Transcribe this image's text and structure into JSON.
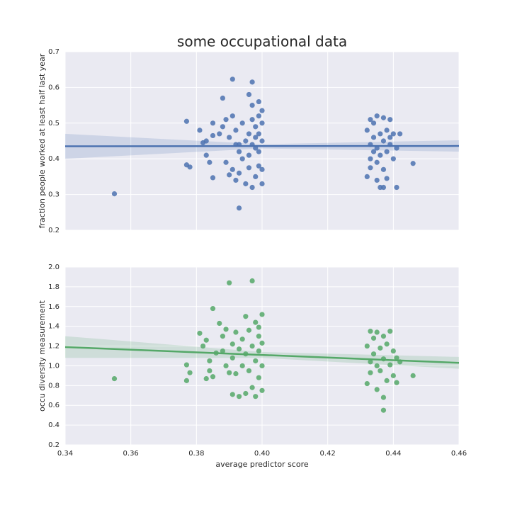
{
  "chart_data": [
    {
      "type": "scatter",
      "title": "some occupational data",
      "ylabel": "fraction people worked at least half last year",
      "color": "#4c72b0",
      "xlim": [
        0.34,
        0.46
      ],
      "xticks": [
        0.34,
        0.36,
        0.38,
        {
          "value": 0.4,
          "label": "0.40"
        },
        0.42,
        0.44,
        0.46
      ],
      "show_xtick_labels": false,
      "ylim": [
        0.2,
        0.7
      ],
      "yticks": [
        0.2,
        0.3,
        0.4,
        0.5,
        0.6,
        0.7
      ],
      "grid": true,
      "x": [
        0.355,
        0.377,
        0.377,
        0.378,
        0.381,
        0.382,
        0.383,
        0.383,
        0.384,
        0.385,
        0.385,
        0.385,
        0.387,
        0.388,
        0.388,
        0.389,
        0.389,
        0.39,
        0.39,
        0.391,
        0.391,
        0.391,
        0.392,
        0.392,
        0.392,
        0.393,
        0.393,
        0.393,
        0.393,
        0.394,
        0.394,
        0.395,
        0.395,
        0.396,
        0.396,
        0.396,
        0.396,
        0.397,
        0.397,
        0.397,
        0.397,
        0.397,
        0.398,
        0.398,
        0.398,
        0.398,
        0.399,
        0.399,
        0.399,
        0.399,
        0.4,
        0.4,
        0.4,
        0.4,
        0.4,
        0.399,
        0.432,
        0.432,
        0.433,
        0.433,
        0.433,
        0.433,
        0.434,
        0.434,
        0.434,
        0.435,
        0.435,
        0.435,
        0.435,
        0.436,
        0.436,
        0.436,
        0.437,
        0.437,
        0.437,
        0.437,
        0.438,
        0.438,
        0.438,
        0.439,
        0.439,
        0.439,
        0.44,
        0.44,
        0.441,
        0.441,
        0.442,
        0.446
      ],
      "values": [
        0.302,
        0.505,
        0.383,
        0.377,
        0.48,
        0.445,
        0.45,
        0.41,
        0.39,
        0.465,
        0.5,
        0.347,
        0.47,
        0.57,
        0.49,
        0.39,
        0.51,
        0.355,
        0.46,
        0.623,
        0.52,
        0.37,
        0.44,
        0.48,
        0.34,
        0.44,
        0.42,
        0.36,
        0.262,
        0.5,
        0.4,
        0.45,
        0.33,
        0.58,
        0.47,
        0.41,
        0.375,
        0.615,
        0.51,
        0.55,
        0.44,
        0.32,
        0.49,
        0.46,
        0.35,
        0.43,
        0.56,
        0.52,
        0.38,
        0.47,
        0.5,
        0.45,
        0.535,
        0.33,
        0.37,
        0.42,
        0.35,
        0.48,
        0.51,
        0.44,
        0.4,
        0.375,
        0.5,
        0.46,
        0.42,
        0.34,
        0.52,
        0.43,
        0.39,
        0.47,
        0.41,
        0.32,
        0.515,
        0.45,
        0.37,
        0.32,
        0.48,
        0.42,
        0.345,
        0.51,
        0.46,
        0.44,
        0.4,
        0.47,
        0.32,
        0.43,
        0.47,
        0.387
      ],
      "fit": {
        "x": [
          0.34,
          0.46
        ],
        "values": [
          0.435,
          0.436
        ]
      },
      "band": {
        "x": [
          0.34,
          0.4,
          0.46
        ],
        "upper": [
          0.47,
          0.441,
          0.452
        ],
        "lower": [
          0.4,
          0.429,
          0.42
        ]
      }
    },
    {
      "type": "scatter",
      "xlabel": "average predictor score",
      "ylabel": "occu diversity measurement",
      "color": "#55a868",
      "xlim": [
        0.34,
        0.46
      ],
      "xticks": [
        0.34,
        0.36,
        0.38,
        {
          "value": 0.4,
          "label": "0.40"
        },
        0.42,
        0.44,
        0.46
      ],
      "show_xtick_labels": true,
      "ylim": [
        0.2,
        2.0
      ],
      "yticks": [
        0.2,
        0.4,
        0.6,
        0.8,
        {
          "value": 1,
          "label": "1.0"
        },
        1.2,
        1.4,
        1.6,
        1.8,
        {
          "value": 2,
          "label": "2.0"
        }
      ],
      "grid": true,
      "x": [
        0.355,
        0.377,
        0.377,
        0.378,
        0.381,
        0.382,
        0.383,
        0.383,
        0.384,
        0.384,
        0.385,
        0.385,
        0.386,
        0.387,
        0.388,
        0.388,
        0.389,
        0.389,
        0.39,
        0.39,
        0.391,
        0.391,
        0.391,
        0.392,
        0.392,
        0.393,
        0.393,
        0.394,
        0.394,
        0.395,
        0.395,
        0.395,
        0.396,
        0.396,
        0.397,
        0.397,
        0.397,
        0.398,
        0.398,
        0.398,
        0.399,
        0.399,
        0.399,
        0.4,
        0.4,
        0.4,
        0.4,
        0.399,
        0.432,
        0.432,
        0.433,
        0.433,
        0.433,
        0.434,
        0.434,
        0.435,
        0.435,
        0.435,
        0.436,
        0.436,
        0.437,
        0.437,
        0.437,
        0.437,
        0.438,
        0.438,
        0.439,
        0.439,
        0.44,
        0.44,
        0.441,
        0.441,
        0.442,
        0.446
      ],
      "values": [
        0.87,
        1.01,
        0.85,
        0.93,
        1.33,
        1.2,
        1.26,
        0.87,
        1.05,
        0.95,
        1.58,
        0.89,
        1.13,
        1.43,
        1.3,
        1.15,
        1.37,
        1.0,
        1.84,
        0.93,
        0.71,
        1.22,
        1.08,
        0.92,
        1.34,
        1.17,
        0.69,
        1.0,
        1.27,
        1.5,
        0.72,
        1.12,
        1.36,
        0.95,
        1.86,
        1.2,
        0.78,
        1.44,
        1.05,
        0.69,
        1.3,
        1.15,
        0.88,
        1.52,
        1.23,
        1.0,
        0.75,
        1.39,
        1.2,
        0.82,
        1.35,
        1.04,
        0.93,
        1.28,
        1.12,
        0.76,
        1.0,
        1.34,
        1.18,
        0.95,
        0.55,
        1.3,
        1.07,
        0.68,
        0.85,
        1.22,
        1.01,
        1.35,
        1.15,
        0.9,
        0.83,
        1.08,
        1.04,
        0.9
      ],
      "fit": {
        "x": [
          0.34,
          0.46
        ],
        "values": [
          1.19,
          1.03
        ]
      },
      "band": {
        "x": [
          0.34,
          0.4,
          0.46
        ],
        "upper": [
          1.3,
          1.14,
          1.09
        ],
        "lower": [
          1.08,
          1.08,
          0.97
        ]
      }
    }
  ]
}
